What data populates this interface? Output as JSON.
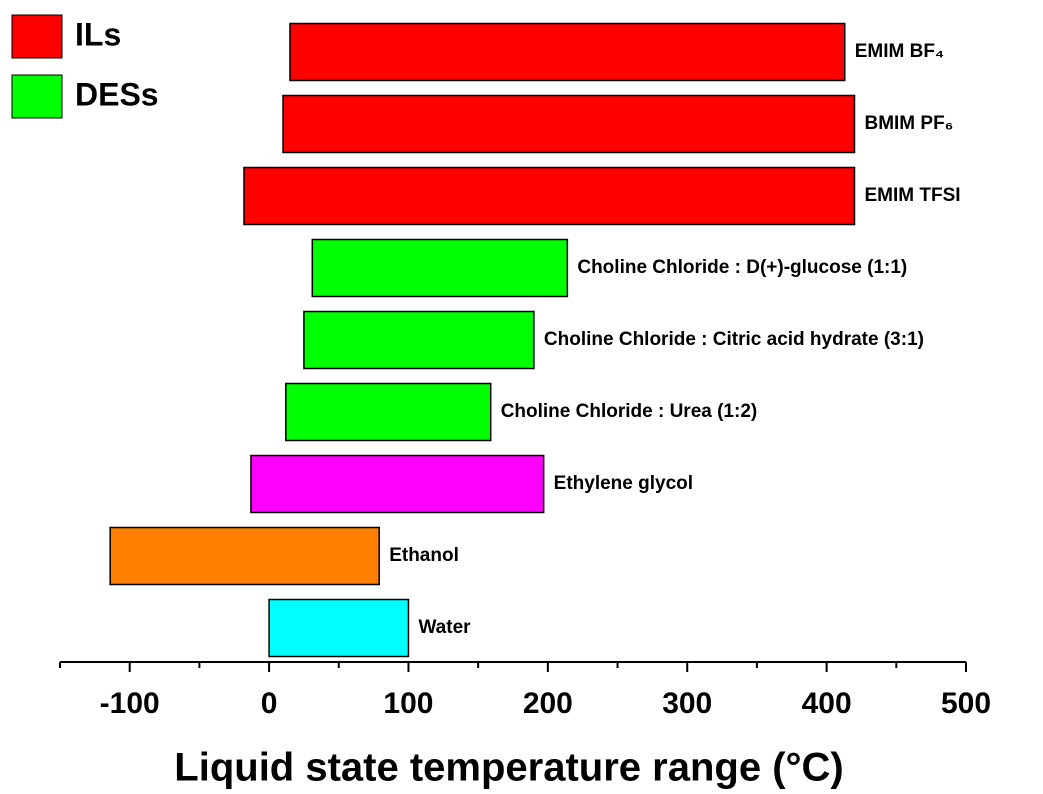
{
  "chart_data": {
    "type": "floating-bar",
    "categories": [
      "EMIM BF₄",
      "BMIM PF₆",
      "EMIM TFSI",
      "Choline Chloride : D(+)-glucose (1:1)",
      "Choline Chloride : Citric acid hydrate (3:1)",
      "Choline Chloride : Urea (1:2)",
      "Ethylene glycol",
      "Ethanol",
      "Water"
    ],
    "values": [
      [
        15,
        413
      ],
      [
        10,
        420
      ],
      [
        -18,
        420
      ],
      [
        31,
        214
      ],
      [
        25,
        190
      ],
      [
        12,
        159
      ],
      [
        -13,
        197
      ],
      [
        -114,
        79
      ],
      [
        0,
        100
      ]
    ],
    "colors": [
      "#ff0000",
      "#ff0000",
      "#ff0000",
      "#00ff00",
      "#00ff00",
      "#00ff00",
      "#ff00ff",
      "#ff8000",
      "#00ffff"
    ],
    "legend": [
      {
        "name": "ILs",
        "color": "#ff0000"
      },
      {
        "name": "DESs",
        "color": "#00ff00"
      }
    ],
    "xlabel": "Liquid state temperature range (°C)",
    "xlim": [
      -150,
      500
    ],
    "xticks": [
      -100,
      0,
      100,
      200,
      300,
      400,
      500
    ],
    "xminorticks": [
      -150,
      -50,
      50,
      150,
      250,
      350,
      450
    ]
  }
}
